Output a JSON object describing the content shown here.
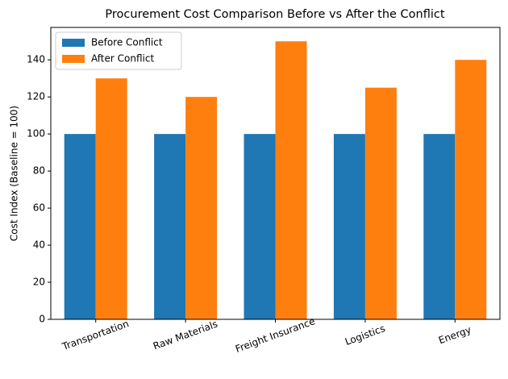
{
  "chart_data": {
    "type": "grouped_bar",
    "title": "Procurement Cost Comparison Before vs After the Conflict",
    "y_label": "Cost Index (Baseline = 100)",
    "categories": [
      "Transportation",
      "Raw Materials",
      "Freight Insurance",
      "Logistics",
      "Energy"
    ],
    "series": [
      {
        "name": "Before Conflict",
        "color": "#1f77b4",
        "values": [
          100,
          100,
          100,
          100,
          100
        ]
      },
      {
        "name": "After Conflict",
        "color": "#ff7f0e",
        "values": [
          130,
          120,
          150,
          125,
          140
        ]
      }
    ],
    "ylim": [
      0,
      157.5
    ],
    "yticks": [
      0,
      20,
      40,
      60,
      80,
      100,
      120,
      140
    ],
    "grid": false,
    "legend": "upper-left"
  }
}
